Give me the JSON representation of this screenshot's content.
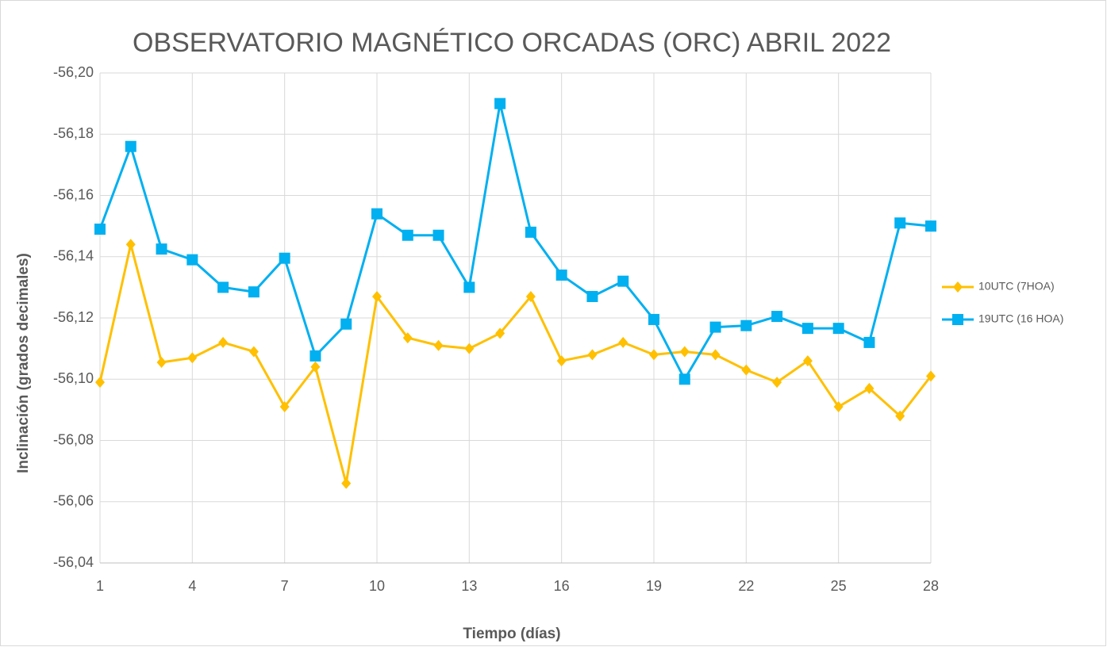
{
  "chart_data": {
    "type": "line",
    "title": "OBSERVATORIO MAGNÉTICO ORCADAS (ORC)  ABRIL 2022",
    "x_label": "Tiempo (días)",
    "y_label": "Inclinación (grados decimales)",
    "x": [
      1,
      2,
      3,
      4,
      5,
      6,
      7,
      8,
      9,
      10,
      11,
      12,
      13,
      14,
      15,
      16,
      17,
      18,
      19,
      20,
      21,
      22,
      23,
      24,
      25,
      26,
      27,
      28
    ],
    "xlim": [
      1,
      28
    ],
    "xticks": [
      1,
      4,
      7,
      10,
      13,
      16,
      19,
      22,
      25,
      28
    ],
    "ylim": [
      -56.04,
      -56.2
    ],
    "yticks": [
      {
        "value": -56.04,
        "label": "-56,04"
      },
      {
        "value": -56.06,
        "label": "-56,06"
      },
      {
        "value": -56.08,
        "label": "-56,08"
      },
      {
        "value": -56.1,
        "label": "-56,10"
      },
      {
        "value": -56.12,
        "label": "-56,12"
      },
      {
        "value": -56.14,
        "label": "-56,14"
      },
      {
        "value": -56.16,
        "label": "-56,16"
      },
      {
        "value": -56.18,
        "label": "-56,18"
      },
      {
        "value": -56.2,
        "label": "-56,20"
      }
    ],
    "grid": true,
    "legend": "right",
    "series": [
      {
        "name": "10UTC (7HOA)",
        "color": "#FFC000",
        "marker": "diamond",
        "values": [
          -56.099,
          -56.144,
          -56.1055,
          -56.107,
          -56.112,
          -56.109,
          -56.091,
          -56.104,
          -56.066,
          -56.127,
          -56.1135,
          -56.111,
          -56.11,
          -56.115,
          -56.127,
          -56.106,
          -56.108,
          -56.112,
          -56.108,
          -56.109,
          -56.108,
          -56.103,
          -56.099,
          -56.106,
          -56.091,
          -56.097,
          -56.088,
          -56.101
        ]
      },
      {
        "name": "19UTC (16 HOA)",
        "color": "#00B0F0",
        "marker": "square",
        "values": [
          -56.149,
          -56.176,
          -56.1425,
          -56.139,
          -56.13,
          -56.1285,
          -56.1395,
          -56.1076,
          -56.118,
          -56.154,
          -56.147,
          -56.147,
          -56.13,
          -56.19,
          -56.148,
          -56.134,
          -56.127,
          -56.132,
          -56.1195,
          -56.1,
          -56.117,
          -56.1175,
          -56.1205,
          -56.1166,
          -56.1166,
          -56.112,
          -56.151,
          -56.15
        ]
      }
    ]
  }
}
